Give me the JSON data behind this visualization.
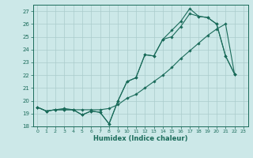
{
  "xlabel": "Humidex (Indice chaleur)",
  "bg_color": "#cce8e8",
  "grid_color": "#aacccc",
  "line_color": "#1a6b5a",
  "xlim": [
    -0.5,
    23.5
  ],
  "ylim": [
    18,
    27.5
  ],
  "yticks": [
    18,
    19,
    20,
    21,
    22,
    23,
    24,
    25,
    26,
    27
  ],
  "xticks": [
    0,
    1,
    2,
    3,
    4,
    5,
    6,
    7,
    8,
    9,
    10,
    11,
    12,
    13,
    14,
    15,
    16,
    17,
    18,
    19,
    20,
    21,
    22,
    23
  ],
  "line1_x": [
    0,
    1,
    2,
    3,
    4,
    5,
    6,
    7,
    8,
    9,
    10,
    11,
    12,
    13,
    14,
    15,
    16,
    17,
    18,
    19,
    20,
    21,
    22
  ],
  "line1_y": [
    19.5,
    19.2,
    19.3,
    19.3,
    19.3,
    18.9,
    19.2,
    19.1,
    18.2,
    20.0,
    21.5,
    21.8,
    23.6,
    23.5,
    24.8,
    25.5,
    26.2,
    27.2,
    26.6,
    26.5,
    26.0,
    23.5,
    22.1
  ],
  "line2_x": [
    0,
    1,
    2,
    3,
    4,
    5,
    6,
    7,
    8,
    9,
    10,
    11,
    12,
    13,
    14,
    15,
    16,
    17,
    18,
    19,
    20,
    21,
    22
  ],
  "line2_y": [
    19.5,
    19.2,
    19.3,
    19.4,
    19.3,
    19.3,
    19.3,
    19.3,
    19.4,
    19.7,
    20.2,
    20.5,
    21.0,
    21.5,
    22.0,
    22.6,
    23.3,
    23.9,
    24.5,
    25.1,
    25.6,
    26.0,
    22.1
  ],
  "line3_x": [
    0,
    1,
    2,
    3,
    4,
    5,
    6,
    7,
    8,
    9,
    10,
    11,
    12,
    13,
    14,
    15,
    16,
    17,
    18,
    19,
    20,
    21,
    22
  ],
  "line3_y": [
    19.5,
    19.2,
    19.3,
    19.3,
    19.3,
    18.9,
    19.2,
    19.1,
    18.2,
    20.0,
    21.5,
    21.8,
    23.6,
    23.5,
    24.8,
    25.0,
    25.8,
    26.8,
    26.6,
    26.5,
    26.0,
    23.5,
    22.1
  ]
}
